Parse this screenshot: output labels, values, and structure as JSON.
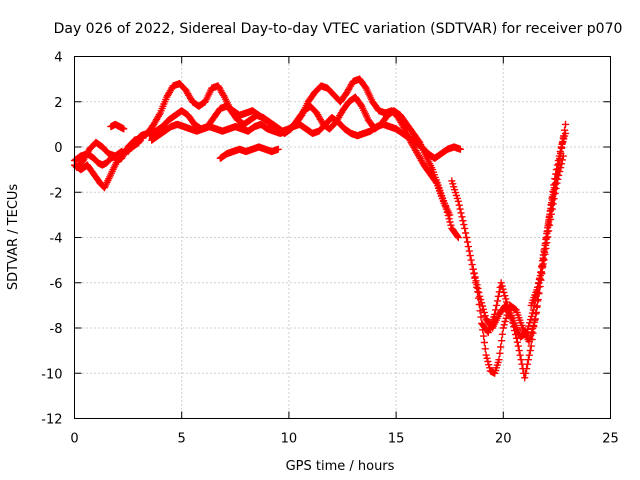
{
  "chart_data": {
    "type": "scatter",
    "title": "Day 026 of 2022, Sidereal Day-to-day VTEC variation (SDTVAR) for receiver p070",
    "xlabel": "GPS time / hours",
    "ylabel": "SDTVAR / TECUs",
    "xlim": [
      0,
      25
    ],
    "ylim": [
      -12,
      4
    ],
    "x_ticks": [
      0,
      5,
      10,
      15,
      20,
      25
    ],
    "y_ticks": [
      4,
      2,
      0,
      -2,
      -4,
      -6,
      -8,
      -10,
      -12
    ],
    "grid": true,
    "marker": "plus",
    "color": "#ff0000",
    "series": [
      {
        "x": [
          0.0,
          0.3,
          0.6,
          0.9,
          1.2,
          1.4,
          1.6,
          1.8,
          2.0,
          2.2,
          2.5,
          2.8,
          3.2
        ],
        "y": [
          -0.8,
          -1.0,
          -0.8,
          -1.2,
          -1.6,
          -1.8,
          -1.4,
          -1.0,
          -0.6,
          -0.5,
          0.0,
          0.3,
          0.4
        ]
      },
      {
        "x": [
          0.0,
          0.3,
          0.6,
          0.9,
          1.1,
          1.3,
          1.5,
          1.7,
          1.9,
          2.1,
          2.4,
          2.7,
          3.0
        ],
        "y": [
          -0.6,
          -0.4,
          -0.3,
          -0.5,
          -0.7,
          -0.8,
          -0.7,
          -0.5,
          -0.4,
          -0.3,
          -0.2,
          0.0,
          0.2
        ]
      },
      {
        "x": [
          0.1,
          0.4,
          0.7,
          1.0,
          1.3,
          1.6,
          1.9,
          2.2
        ],
        "y": [
          -0.9,
          -0.6,
          -0.1,
          0.2,
          0.0,
          -0.3,
          -0.4,
          -0.2
        ]
      },
      {
        "x": [
          1.7,
          1.9,
          2.1,
          2.3
        ],
        "y": [
          0.9,
          1.0,
          0.9,
          0.8
        ]
      },
      {
        "x": [
          2.5,
          2.8,
          3.1,
          3.4,
          3.7,
          4.0,
          4.3,
          4.6,
          4.9,
          5.2,
          5.5,
          5.8,
          6.1,
          6.4,
          6.7,
          7.0,
          7.3,
          7.6,
          7.9,
          8.2,
          8.5,
          8.8,
          9.1,
          9.4,
          9.7,
          10.0,
          10.3,
          10.6,
          10.9,
          11.2,
          11.5,
          11.8,
          12.1,
          12.4,
          12.7,
          13.0,
          13.3,
          13.6,
          13.9,
          14.2,
          14.5,
          14.8,
          15.1,
          15.4,
          15.7,
          16.0,
          16.3,
          16.6,
          16.9,
          17.2,
          17.5
        ],
        "y": [
          -0.2,
          0.2,
          0.5,
          0.6,
          1.0,
          1.5,
          2.2,
          2.7,
          2.8,
          2.5,
          2.0,
          1.8,
          2.0,
          2.6,
          2.7,
          2.2,
          1.6,
          1.2,
          1.0,
          1.2,
          1.4,
          1.3,
          1.1,
          0.9,
          0.7,
          0.8,
          1.0,
          1.4,
          2.0,
          2.4,
          2.7,
          2.6,
          2.3,
          2.0,
          2.4,
          2.9,
          3.0,
          2.6,
          2.0,
          1.6,
          1.5,
          1.6,
          1.3,
          0.8,
          0.2,
          -0.3,
          -0.8,
          -1.2,
          -1.6,
          -2.4,
          -3.0
        ]
      },
      {
        "x": [
          3.5,
          3.8,
          4.1,
          4.4,
          4.7,
          5.0,
          5.3,
          5.6,
          5.9,
          6.2,
          6.5,
          6.8,
          7.1,
          7.4,
          7.7,
          8.0,
          8.3,
          8.6,
          8.9,
          9.2,
          9.5,
          9.8,
          10.1,
          10.4,
          10.7,
          11.0,
          11.3,
          11.6,
          11.9,
          12.2,
          12.5,
          12.8,
          13.1,
          13.4,
          13.7,
          14.0,
          14.3,
          14.6,
          14.9,
          15.2,
          15.5,
          15.8,
          16.1,
          16.4,
          16.7,
          17.0,
          17.3,
          17.6,
          17.9
        ],
        "y": [
          0.5,
          0.7,
          0.9,
          1.2,
          1.4,
          1.6,
          1.4,
          1.0,
          0.8,
          0.9,
          1.3,
          1.7,
          1.8,
          1.6,
          1.4,
          1.5,
          1.6,
          1.4,
          1.2,
          1.0,
          0.8,
          0.6,
          0.8,
          1.2,
          1.6,
          1.8,
          1.5,
          1.0,
          0.8,
          1.1,
          1.6,
          2.0,
          2.2,
          1.8,
          1.2,
          0.8,
          1.0,
          1.4,
          1.6,
          1.4,
          1.0,
          0.6,
          0.2,
          -0.4,
          -1.0,
          -1.8,
          -2.6,
          -3.6,
          -4.0
        ]
      },
      {
        "x": [
          3.6,
          3.9,
          4.2,
          4.5,
          4.8,
          5.1,
          5.4,
          5.7,
          6.0,
          6.3,
          6.6,
          6.9,
          7.2,
          7.5,
          7.8,
          8.1,
          8.4,
          8.7,
          9.0,
          9.3,
          9.6,
          9.9,
          10.2,
          10.5,
          10.8,
          11.1,
          11.4,
          11.7,
          12.0,
          12.3,
          12.6,
          12.9,
          13.2,
          13.5,
          13.8,
          14.1,
          14.4,
          14.7,
          15.0,
          15.3,
          15.6,
          15.9,
          16.2,
          16.5,
          16.8,
          17.1,
          17.4,
          17.7,
          18.0
        ],
        "y": [
          0.3,
          0.5,
          0.7,
          0.9,
          1.0,
          0.9,
          0.8,
          0.7,
          0.8,
          0.9,
          0.8,
          0.7,
          0.8,
          0.9,
          0.8,
          0.7,
          0.9,
          1.0,
          0.8,
          0.7,
          0.6,
          0.7,
          0.9,
          1.0,
          0.8,
          0.6,
          0.7,
          1.0,
          1.3,
          1.1,
          0.8,
          0.6,
          0.5,
          0.6,
          0.7,
          0.9,
          1.0,
          0.9,
          0.8,
          0.6,
          0.4,
          0.2,
          0.0,
          -0.3,
          -0.5,
          -0.3,
          -0.1,
          0.0,
          -0.1
        ]
      },
      {
        "x": [
          6.8,
          7.1,
          7.4,
          7.7,
          8.0,
          8.3,
          8.6,
          8.9,
          9.2,
          9.5
        ],
        "y": [
          -0.5,
          -0.3,
          -0.2,
          -0.1,
          -0.2,
          -0.1,
          0.0,
          -0.1,
          -0.2,
          -0.1
        ]
      },
      {
        "x": [
          17.6,
          17.9,
          18.2,
          18.5,
          18.8,
          19.0,
          19.2,
          19.4,
          19.6,
          19.8,
          20.0,
          20.3,
          20.6,
          20.9,
          21.2,
          21.5,
          21.8,
          22.1,
          22.4,
          22.7,
          22.9
        ],
        "y": [
          -1.5,
          -2.4,
          -3.6,
          -5.0,
          -6.4,
          -7.8,
          -9.2,
          -9.9,
          -10.0,
          -9.4,
          -8.0,
          -7.0,
          -7.2,
          -8.0,
          -8.6,
          -7.6,
          -5.6,
          -3.4,
          -1.4,
          0.0,
          0.6
        ]
      },
      {
        "x": [
          18.6,
          18.9,
          19.2,
          19.5,
          19.8,
          20.1,
          20.4,
          20.7,
          21.0,
          21.3,
          21.6,
          21.9,
          22.2,
          22.5,
          22.8
        ],
        "y": [
          -5.4,
          -6.6,
          -7.6,
          -8.0,
          -7.4,
          -7.0,
          -7.6,
          -8.8,
          -10.2,
          -8.8,
          -6.8,
          -4.6,
          -2.8,
          -1.2,
          0.4
        ]
      },
      {
        "x": [
          19.0,
          19.3,
          19.6,
          19.9,
          20.2,
          20.5,
          20.8,
          21.1,
          21.4,
          21.7,
          22.0,
          22.3,
          22.6,
          22.9
        ],
        "y": [
          -7.8,
          -8.2,
          -7.4,
          -6.0,
          -7.0,
          -7.8,
          -8.4,
          -8.2,
          -7.2,
          -5.8,
          -4.0,
          -2.2,
          -0.8,
          1.0
        ]
      },
      {
        "x": [
          21.3,
          21.6,
          21.9,
          22.2,
          22.5,
          22.8
        ],
        "y": [
          -7.0,
          -6.2,
          -5.0,
          -3.2,
          -1.6,
          -0.4
        ]
      }
    ]
  }
}
